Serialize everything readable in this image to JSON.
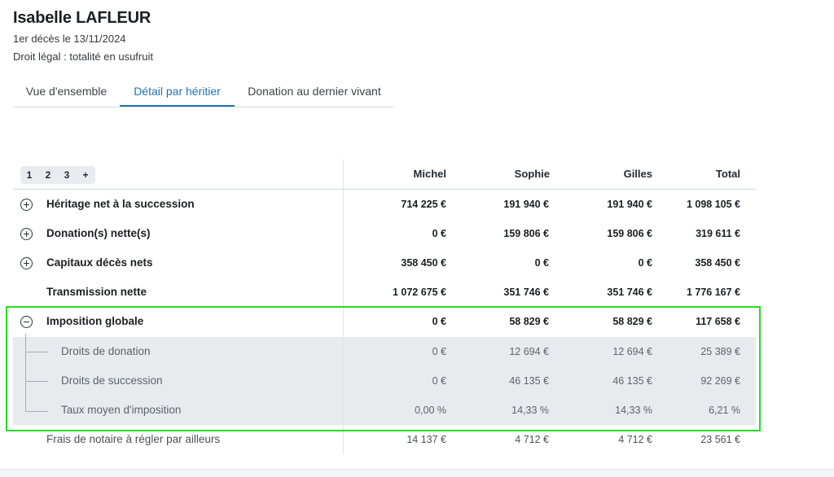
{
  "header": {
    "name": "Isabelle LAFLEUR",
    "deces": "1er décès le 13/11/2024",
    "droit": "Droit légal : totalité en usufruit"
  },
  "tabs": [
    {
      "label": "Vue d'ensemble",
      "active": false
    },
    {
      "label": "Détail par héritier",
      "active": true
    },
    {
      "label": "Donation au dernier vivant",
      "active": false
    }
  ],
  "pager": [
    "1",
    "2",
    "3",
    "+"
  ],
  "columns": [
    "Michel",
    "Sophie",
    "Gilles",
    "Total"
  ],
  "rows": [
    {
      "label": "Héritage net à la succession",
      "values": [
        "714 225 €",
        "191 940 €",
        "191 940 €",
        "1 098 105 €"
      ]
    },
    {
      "label": "Donation(s) nette(s)",
      "values": [
        "0 €",
        "159 806 €",
        "159 806 €",
        "319 611 €"
      ]
    },
    {
      "label": "Capitaux décès nets",
      "values": [
        "358 450 €",
        "0 €",
        "0 €",
        "358 450 €"
      ]
    },
    {
      "label": "Transmission nette",
      "values": [
        "1 072 675 €",
        "351 746 €",
        "351 746 €",
        "1 776 167 €"
      ]
    },
    {
      "label": "Imposition globale",
      "values": [
        "0 €",
        "58 829 €",
        "58 829 €",
        "117 658 €"
      ]
    },
    {
      "label": "Droits de donation",
      "values": [
        "0 €",
        "12 694 €",
        "12 694 €",
        "25 389 €"
      ]
    },
    {
      "label": "Droits de succession",
      "values": [
        "0 €",
        "46 135 €",
        "46 135 €",
        "92 269 €"
      ]
    },
    {
      "label": "Taux moyen d'imposition",
      "values": [
        "0,00 %",
        "14,33 %",
        "14,33 %",
        "6,21 %"
      ]
    },
    {
      "label": "Frais de notaire à régler par ailleurs",
      "values": [
        "14 137 €",
        "4 712 €",
        "4 712 €",
        "23 561 €"
      ]
    }
  ],
  "colors": {
    "accent": "#1f73b7",
    "highlight": "#22dd22",
    "subrow_bg": "#e8ebee"
  }
}
